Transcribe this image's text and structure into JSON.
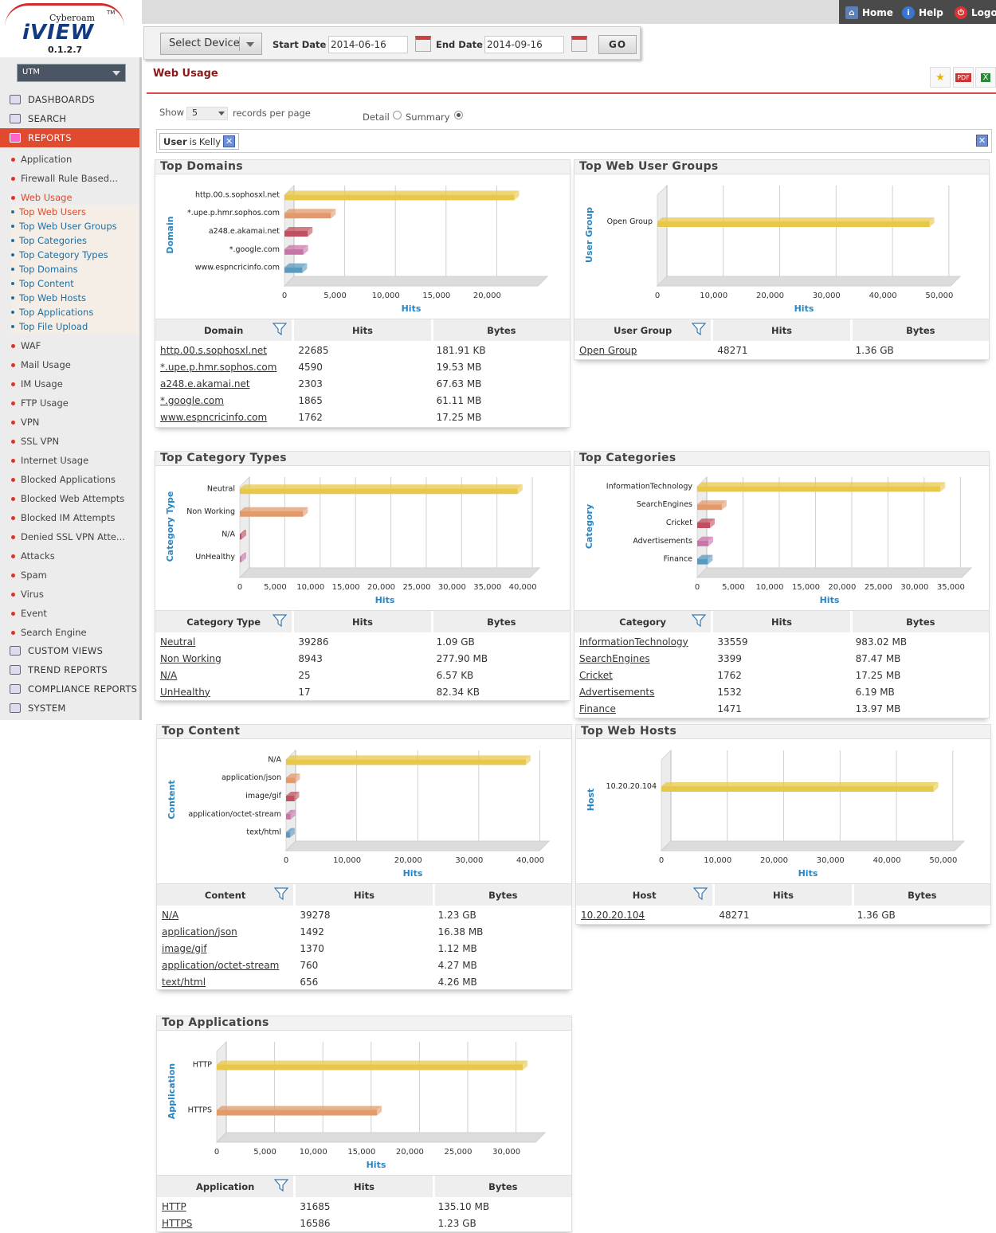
{
  "app": {
    "brand_top": "Cyberoam",
    "brand": "iVIEW",
    "version": "0.1.2.7",
    "tm": "TM"
  },
  "topnav": {
    "home": "Home",
    "help": "Help",
    "logout": "Logo"
  },
  "sidebar": {
    "device": "UTM",
    "top_items": [
      "DASHBOARDS",
      "SEARCH",
      "REPORTS"
    ],
    "items": [
      "Application",
      "Firewall Rule Based...",
      "Web Usage",
      "WAF",
      "Mail Usage",
      "IM Usage",
      "FTP Usage",
      "VPN",
      "SSL VPN",
      "Internet Usage",
      "Blocked Applications",
      "Blocked Web Attempts",
      "Blocked IM Attempts",
      "Denied SSL VPN Atte...",
      "Attacks",
      "Spam",
      "Virus",
      "Event",
      "Search Engine"
    ],
    "web_usage_children": [
      "Top Web Users",
      "Top Web User Groups",
      "Top Categories",
      "Top Category Types",
      "Top Domains",
      "Top Content",
      "Top Web Hosts",
      "Top Applications",
      "Top File Upload"
    ],
    "bottom_items": [
      "CUSTOM VIEWS",
      "TREND REPORTS",
      "COMPLIANCE REPORTS",
      "SYSTEM"
    ]
  },
  "filter": {
    "select_device": "Select Device",
    "start_label": "Start Date",
    "start_value": "2014-06-16",
    "end_label": "End Date",
    "end_value": "2014-09-16",
    "go": "GO"
  },
  "page": {
    "title": "Web Usage",
    "show": "Show",
    "page_size": "5",
    "records_per_page": "records per page",
    "detail": "Detail",
    "summary": "Summary"
  },
  "criteria": {
    "field": "User",
    "op": "is",
    "value": "Kelly"
  },
  "colors": {
    "bar": [
      "#e8c84a",
      "#e39a6a",
      "#c0505f",
      "#c874a8",
      "#5a9ac0"
    ]
  },
  "panels": [
    {
      "title": "Top Domains",
      "axis_title": "Domain",
      "x_title": "Hits",
      "xmax": 25000,
      "ticks": [
        0,
        5000,
        10000,
        15000,
        20000
      ],
      "columns": [
        "Domain",
        "Hits",
        "Bytes"
      ],
      "rows": [
        [
          "http.00.s.sophosxl.net",
          "22685",
          "181.91 KB"
        ],
        [
          "*.upe.p.hmr.sophos.com",
          "4590",
          "19.53 MB"
        ],
        [
          "a248.e.akamai.net",
          "2303",
          "67.63 MB"
        ],
        [
          "*.google.com",
          "1865",
          "61.11 MB"
        ],
        [
          "www.espncricinfo.com",
          "1762",
          "17.25 MB"
        ]
      ]
    },
    {
      "title": "Top Web User Groups",
      "axis_title": "User Group",
      "x_title": "Hits",
      "xmax": 52000,
      "ticks": [
        0,
        10000,
        20000,
        30000,
        40000,
        50000
      ],
      "columns": [
        "User Group",
        "Hits",
        "Bytes"
      ],
      "rows": [
        [
          "Open Group",
          "48271",
          "1.36 GB"
        ]
      ]
    },
    {
      "title": "Top Category Types",
      "axis_title": "Category Type",
      "x_title": "Hits",
      "xmax": 41000,
      "ticks": [
        0,
        5000,
        10000,
        15000,
        20000,
        25000,
        30000,
        35000,
        40000
      ],
      "columns": [
        "Category Type",
        "Hits",
        "Bytes"
      ],
      "rows": [
        [
          "Neutral",
          "39286",
          "1.09 GB"
        ],
        [
          "Non Working",
          "8943",
          "277.90 MB"
        ],
        [
          "N/A",
          "25",
          "6.57 KB"
        ],
        [
          "UnHealthy",
          "17",
          "82.34 KB"
        ]
      ]
    },
    {
      "title": "Top Categories",
      "axis_title": "Category",
      "x_title": "Hits",
      "xmax": 36500,
      "ticks": [
        0,
        5000,
        10000,
        15000,
        20000,
        25000,
        30000,
        35000
      ],
      "columns": [
        "Category",
        "Hits",
        "Bytes"
      ],
      "rows": [
        [
          "InformationTechnology",
          "33559",
          "983.02 MB"
        ],
        [
          "SearchEngines",
          "3399",
          "87.47 MB"
        ],
        [
          "Cricket",
          "1762",
          "17.25 MB"
        ],
        [
          "Advertisements",
          "1532",
          "6.19 MB"
        ],
        [
          "Finance",
          "1471",
          "13.97 MB"
        ]
      ]
    },
    {
      "title": "Top Content",
      "axis_title": "Content",
      "x_title": "Hits",
      "xmax": 41500,
      "ticks": [
        0,
        10000,
        20000,
        30000,
        40000
      ],
      "columns": [
        "Content",
        "Hits",
        "Bytes"
      ],
      "rows": [
        [
          "N/A",
          "39278",
          "1.23 GB"
        ],
        [
          "application/json",
          "1492",
          "16.38 MB"
        ],
        [
          "image/gif",
          "1370",
          "1.12 MB"
        ],
        [
          "application/octet-stream",
          "760",
          "4.27 MB"
        ],
        [
          "text/html",
          "656",
          "4.26 MB"
        ]
      ]
    },
    {
      "title": "Top Web Hosts",
      "axis_title": "Host",
      "x_title": "Hits",
      "xmax": 52000,
      "ticks": [
        0,
        10000,
        20000,
        30000,
        40000,
        50000
      ],
      "columns": [
        "Host",
        "Hits",
        "Bytes"
      ],
      "rows": [
        [
          "10.20.20.104",
          "48271",
          "1.36 GB"
        ]
      ]
    },
    {
      "title": "Top Applications",
      "axis_title": "Application",
      "x_title": "Hits",
      "xmax": 33000,
      "ticks": [
        0,
        5000,
        10000,
        15000,
        20000,
        25000,
        30000
      ],
      "columns": [
        "Application",
        "Hits",
        "Bytes"
      ],
      "rows": [
        [
          "HTTP",
          "31685",
          "135.10 MB"
        ],
        [
          "HTTPS",
          "16586",
          "1.23 GB"
        ]
      ]
    }
  ]
}
